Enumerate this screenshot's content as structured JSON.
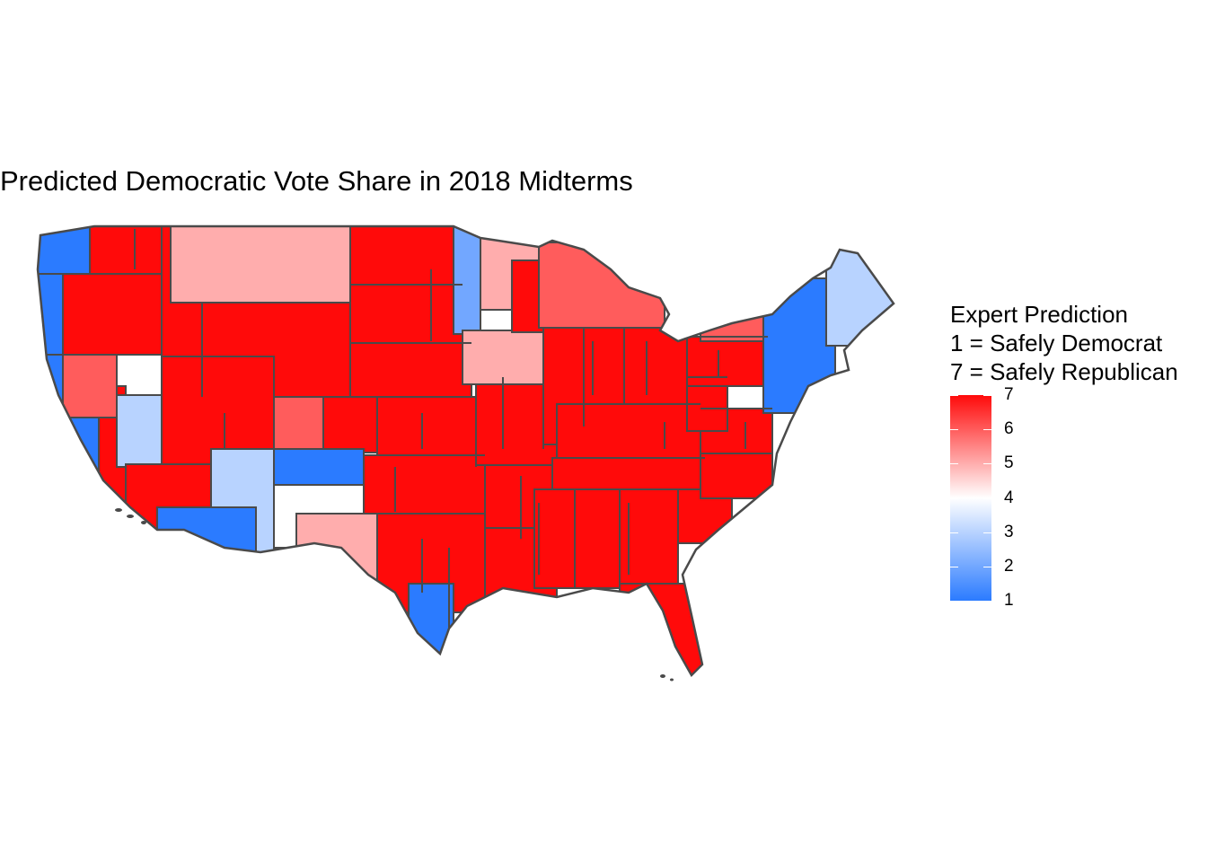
{
  "title": "Predicted Democratic Vote Share in 2018 Midterms",
  "legend": {
    "title_lines": [
      "Expert Prediction",
      "1 = Safely Democrat",
      "7 = Safely Republican"
    ],
    "ticks": [
      "7",
      "6",
      "5",
      "4",
      "3",
      "2",
      "1"
    ],
    "scale_min": 1,
    "scale_max": 7,
    "colors": {
      "low": "#2b7bff",
      "mid": "#ffffff",
      "high": "#ff0a0a"
    }
  },
  "map": {
    "border_color": "#4a4a4a",
    "regions": [
      {
        "name": "washington-west",
        "rating": 1
      },
      {
        "name": "washington-east",
        "rating": 7
      },
      {
        "name": "oregon-coast",
        "rating": 1
      },
      {
        "name": "oregon-east",
        "rating": 7
      },
      {
        "name": "california-coast",
        "rating": 1
      },
      {
        "name": "california-inland",
        "rating": 7
      },
      {
        "name": "nevada-north",
        "rating": 6
      },
      {
        "name": "nevada-south",
        "rating": 3
      },
      {
        "name": "idaho",
        "rating": 7
      },
      {
        "name": "montana",
        "rating": 5
      },
      {
        "name": "wyoming",
        "rating": 7
      },
      {
        "name": "utah",
        "rating": 7
      },
      {
        "name": "arizona-west",
        "rating": 7
      },
      {
        "name": "arizona-east",
        "rating": 3
      },
      {
        "name": "arizona-south",
        "rating": 1
      },
      {
        "name": "colorado-west",
        "rating": 6
      },
      {
        "name": "colorado-east",
        "rating": 7
      },
      {
        "name": "new-mexico-north",
        "rating": 1
      },
      {
        "name": "new-mexico-south",
        "rating": 4
      },
      {
        "name": "north-dakota",
        "rating": 7
      },
      {
        "name": "south-dakota",
        "rating": 7
      },
      {
        "name": "nebraska",
        "rating": 7
      },
      {
        "name": "kansas",
        "rating": 7
      },
      {
        "name": "oklahoma",
        "rating": 7
      },
      {
        "name": "texas-west",
        "rating": 5
      },
      {
        "name": "texas-east",
        "rating": 7
      },
      {
        "name": "texas-south",
        "rating": 1
      },
      {
        "name": "minnesota-west",
        "rating": 2
      },
      {
        "name": "minnesota-north",
        "rating": 5
      },
      {
        "name": "iowa",
        "rating": 5
      },
      {
        "name": "missouri",
        "rating": 7
      },
      {
        "name": "arkansas",
        "rating": 7
      },
      {
        "name": "louisiana",
        "rating": 7
      },
      {
        "name": "wisconsin",
        "rating": 7
      },
      {
        "name": "michigan",
        "rating": 6
      },
      {
        "name": "illinois",
        "rating": 7
      },
      {
        "name": "indiana",
        "rating": 7
      },
      {
        "name": "ohio",
        "rating": 7
      },
      {
        "name": "kentucky",
        "rating": 7
      },
      {
        "name": "tennessee",
        "rating": 7
      },
      {
        "name": "mississippi",
        "rating": 7
      },
      {
        "name": "alabama",
        "rating": 7
      },
      {
        "name": "georgia",
        "rating": 7
      },
      {
        "name": "florida",
        "rating": 7
      },
      {
        "name": "south-carolina",
        "rating": 7
      },
      {
        "name": "north-carolina",
        "rating": 7
      },
      {
        "name": "virginia",
        "rating": 7
      },
      {
        "name": "west-virginia",
        "rating": 7
      },
      {
        "name": "pennsylvania",
        "rating": 7
      },
      {
        "name": "new-york",
        "rating": 6
      },
      {
        "name": "new-england",
        "rating": 1
      },
      {
        "name": "maine",
        "rating": 3
      }
    ]
  }
}
